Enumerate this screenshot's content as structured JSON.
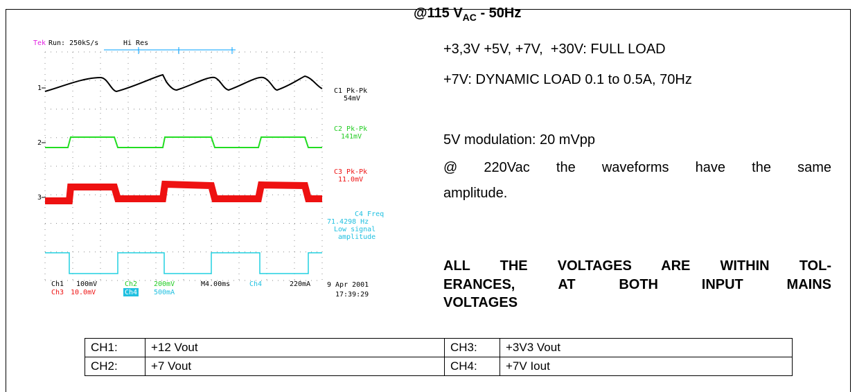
{
  "scope": {
    "brand": "Tek",
    "run": "Run: 250kS/s",
    "mode": "Hi Res",
    "markers": [
      "1",
      "2",
      "3"
    ],
    "readouts": [
      [
        "C1 Pk-Pk",
        "54mV"
      ],
      [
        "C2 Pk-Pk",
        "141mV"
      ],
      [
        "C3 Pk-Pk",
        "11.0mV"
      ],
      [
        "C4 Freq",
        "71.4298 Hz",
        "Low signal",
        "amplitude"
      ]
    ],
    "bottom_row1": [
      "Ch1",
      "100mV",
      "Ch2",
      "200mV",
      "M4.00ms",
      "Ch4",
      "220mA"
    ],
    "bottom_row2": [
      "Ch3",
      "10.0mV",
      "Ch4",
      "500mA"
    ],
    "date": "9 Apr 2001",
    "time": "17:39:29"
  },
  "conditions": {
    "heading": {
      "prefix": "@115 V",
      "subscript": "AC",
      "suffix": " - 50Hz"
    },
    "load": "+3,3V +5V, +7V,  +30V: FULL LOAD",
    "dynamic": "+7V: DYNAMIC LOAD 0.1 to 0.5A, 70Hz",
    "modulation": "5V modulation: 20 mVpp",
    "note_lines": [
      "@ 220Vac the waveforms have the same",
      "amplitude."
    ],
    "conclusion_lines": [
      "ALL THE VOLTAGES ARE WITHIN TOL-",
      "ERANCES, AT BOTH INPUT MAINS",
      "VOLTAGES"
    ]
  },
  "table": {
    "rows": [
      [
        "CH1:",
        "+12 Vout",
        "CH3:",
        "+3V3 Vout"
      ],
      [
        "CH2:",
        "+7 Vout",
        "CH4:",
        "+7V Iout"
      ]
    ]
  }
}
